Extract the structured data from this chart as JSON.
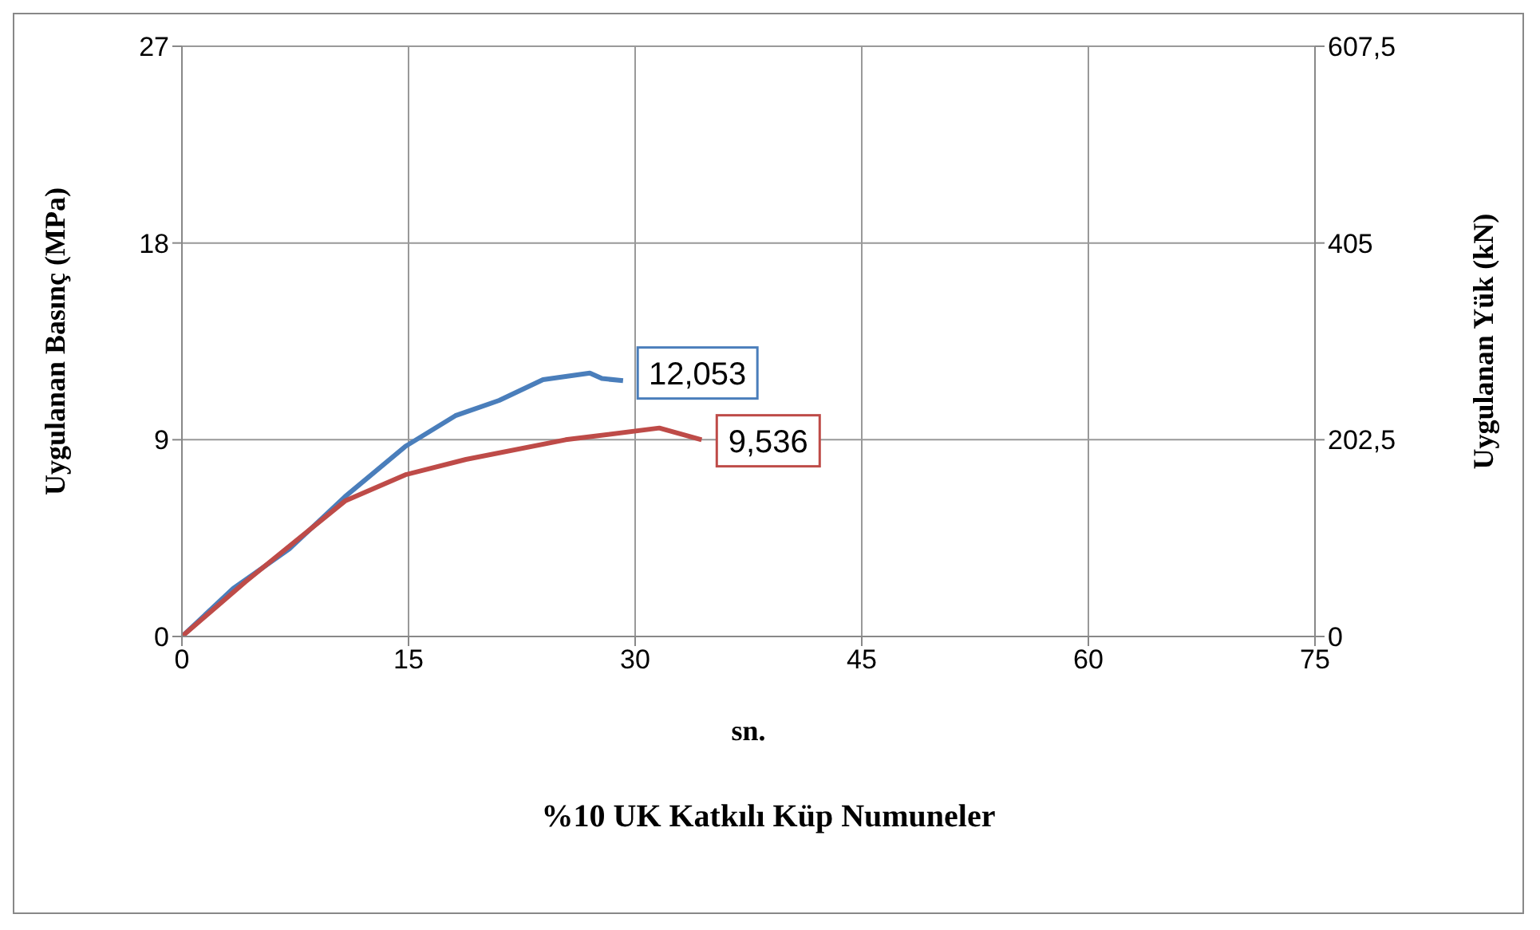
{
  "chart_data": {
    "type": "line",
    "title": "%10 UK Katkılı Küp Numuneler",
    "xlabel": "sn.",
    "ylabel": "Uygulanan Basınç (MPa)",
    "y2label": "Uygulanan Yük (kN)",
    "xlim": [
      0,
      75
    ],
    "xticks": [
      0,
      15,
      30,
      45,
      60,
      75
    ],
    "ylim": [
      0,
      27
    ],
    "yticks": [
      0,
      9,
      18,
      27
    ],
    "y2lim": [
      0,
      607.5
    ],
    "y2ticks": [
      0,
      {
        "value": 202.5,
        "label": "202,5"
      },
      405,
      {
        "value": 607.5,
        "label": "607,5"
      }
    ],
    "grid": true,
    "marker": "none",
    "line_style": "solid",
    "series": [
      {
        "color": "#4a7ebb",
        "x": [
          0,
          3.4,
          7.1,
          10.8,
          14.8,
          18.1,
          21,
          23.9,
          27,
          27.8,
          29.2
        ],
        "values": [
          0,
          2.2,
          4.0,
          6.4,
          8.7,
          10.1,
          10.8,
          11.75,
          12.053,
          11.8,
          11.7
        ]
      },
      {
        "color": "#be4b48",
        "x": [
          0,
          4.2,
          10.8,
          14.8,
          18.8,
          25.4,
          31.6,
          34.4
        ],
        "values": [
          0,
          2.5,
          6.2,
          7.4,
          8.1,
          9.0,
          9.536,
          9.0
        ]
      }
    ],
    "annotations": [
      {
        "text": "12,053",
        "x": 27,
        "y": 12.053
      },
      {
        "text": "9,536",
        "x": 31.6,
        "y": 9.536
      }
    ]
  }
}
